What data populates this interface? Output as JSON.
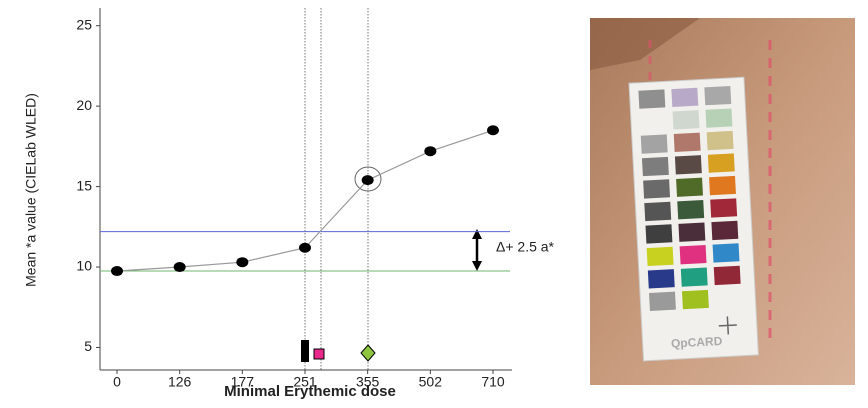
{
  "chart_data": {
    "type": "line",
    "x_label": "Minimal Erythemic dose",
    "y_label": "Mean *a value (CIELab WLED)",
    "categories": [
      "0",
      "126",
      "177",
      "251",
      "355",
      "502",
      "710"
    ],
    "series": [
      {
        "color": "#999999",
        "values": [
          9.75,
          10.0,
          10.3,
          11.2,
          15.4,
          17.2,
          18.5
        ]
      }
    ],
    "ylim": [
      3.6,
      26.1
    ],
    "yticks": [
      5,
      10,
      15,
      20,
      25
    ],
    "hlines": [
      {
        "value": 12.2,
        "color": "#5b67d8"
      },
      {
        "value": 9.75,
        "color": "#6fb56f"
      }
    ],
    "annotation": "Δ+ 2.5 a*"
  },
  "photo": {
    "card_label": "QpCARD"
  }
}
